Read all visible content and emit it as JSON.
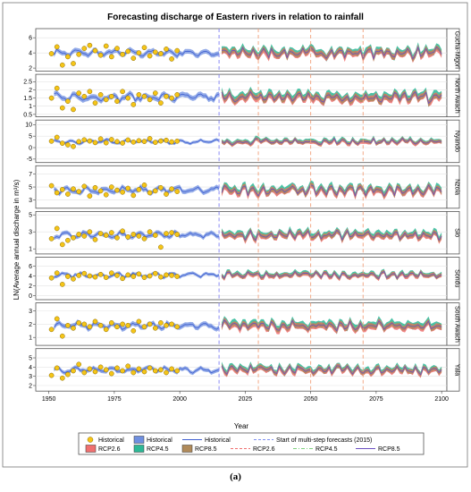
{
  "chart_data": {
    "type": "line",
    "title": "Forecasting discharge of Eastern rivers in relation to rainfall",
    "xlabel": "Year",
    "ylabel": "LN(Average annual discharge in m³/s)",
    "xlim": [
      1945,
      2102
    ],
    "xticks": [
      1950,
      1975,
      2000,
      2025,
      2050,
      2075,
      2100
    ],
    "vlines": {
      "forecast_start": 2015,
      "rcp_markers": [
        2030,
        2050,
        2070
      ]
    },
    "panels": [
      {
        "name": "Gucha-Migori",
        "ylim": [
          1.6,
          7.2
        ],
        "yticks": [
          2,
          4,
          6
        ],
        "level": 4.0,
        "spread": 0.9,
        "hist_obs": [
          3.9,
          4.8,
          2.4,
          3.5,
          2.6,
          3.8,
          4.6,
          5.0,
          4.3,
          3.7,
          4.9,
          3.5,
          4.6,
          3.8,
          4.2,
          3.3,
          4.0,
          4.7,
          3.6,
          4.1,
          3.9,
          4.5,
          3.2,
          4.3
        ]
      },
      {
        "name": "North Awach",
        "ylim": [
          0.35,
          2.95
        ],
        "yticks": [
          0.5,
          1.0,
          1.5,
          2.0,
          2.5
        ],
        "level": 1.55,
        "spread": 0.45,
        "hist_obs": [
          1.5,
          2.1,
          0.9,
          1.3,
          0.8,
          1.8,
          1.6,
          1.9,
          1.2,
          1.7,
          1.4,
          1.6,
          1.3,
          1.9,
          1.5,
          1.1,
          1.7,
          1.6,
          1.4,
          1.8,
          1.2,
          1.6,
          1.5,
          1.7
        ]
      },
      {
        "name": "Nyando",
        "ylim": [
          -6.5,
          12.0
        ],
        "yticks": [
          -5,
          0,
          5,
          10
        ],
        "level": 2.6,
        "spread": 1.8,
        "hist_obs": [
          2.8,
          4.5,
          1.9,
          1.2,
          0.5,
          2.6,
          3.4,
          2.9,
          2.2,
          3.8,
          2.1,
          3.5,
          2.6,
          2.0,
          3.3,
          2.4,
          3.0,
          2.7,
          3.9,
          2.3,
          2.9,
          3.2,
          2.5,
          2.8
        ]
      },
      {
        "name": "Nzoia",
        "ylim": [
          1.7,
          8.3
        ],
        "yticks": [
          3,
          5,
          7
        ],
        "level": 4.5,
        "spread": 1.0,
        "hist_obs": [
          5.2,
          4.1,
          4.6,
          3.9,
          4.7,
          4.3,
          5.1,
          3.6,
          4.9,
          4.4,
          3.8,
          5.0,
          4.5,
          4.2,
          4.8,
          3.7,
          4.6,
          5.3,
          4.1,
          4.4,
          4.9,
          3.9,
          4.7,
          4.3
        ]
      },
      {
        "name": "Sio",
        "ylim": [
          0.4,
          5.4
        ],
        "yticks": [
          1,
          3,
          5
        ],
        "level": 2.6,
        "spread": 0.7,
        "hist_obs": [
          2.2,
          3.4,
          1.5,
          2.0,
          2.3,
          2.7,
          2.5,
          3.0,
          2.1,
          2.8,
          2.6,
          2.9,
          2.3,
          3.1,
          2.4,
          2.7,
          2.5,
          2.2,
          3.0,
          2.6,
          1.2,
          2.8,
          2.9,
          2.7
        ]
      },
      {
        "name": "Sondu",
        "ylim": [
          -0.8,
          7.8
        ],
        "yticks": [
          0,
          2,
          4,
          6
        ],
        "level": 4.2,
        "spread": 0.9,
        "hist_obs": [
          3.6,
          4.6,
          2.3,
          3.9,
          3.4,
          4.1,
          4.5,
          4.0,
          3.8,
          4.3,
          3.7,
          4.6,
          4.1,
          3.5,
          4.2,
          3.9,
          4.4,
          3.7,
          4.0,
          4.5,
          3.8,
          4.2,
          4.1,
          3.9
        ]
      },
      {
        "name": "South Awach",
        "ylim": [
          0.4,
          3.6
        ],
        "yticks": [
          1,
          2,
          3
        ],
        "level": 1.9,
        "spread": 0.5,
        "hist_obs": [
          1.6,
          2.4,
          1.1,
          1.9,
          1.7,
          2.1,
          2.0,
          1.8,
          2.2,
          1.9,
          1.6,
          2.1,
          1.8,
          2.0,
          1.9,
          1.5,
          2.2,
          1.8,
          2.0,
          1.7,
          2.1,
          1.9,
          2.0,
          1.8
        ]
      },
      {
        "name": "Yala",
        "ylim": [
          1.4,
          6.0
        ],
        "yticks": [
          2,
          3,
          4,
          5
        ],
        "level": 3.7,
        "spread": 0.6,
        "hist_obs": [
          3.1,
          3.9,
          2.8,
          3.2,
          3.6,
          4.3,
          3.4,
          3.8,
          3.5,
          4.0,
          3.7,
          3.3,
          3.9,
          3.6,
          4.1,
          3.4,
          3.8,
          3.5,
          3.9,
          3.6,
          3.7,
          3.4,
          3.8,
          3.6
        ]
      }
    ],
    "legend": {
      "row1": [
        {
          "label": "Historical",
          "kind": "marker",
          "color": "#f5c518"
        },
        {
          "label": "Historical",
          "kind": "band",
          "color": "#6f8fe0"
        },
        {
          "label": "Historical",
          "kind": "line",
          "color": "#3f5fd0"
        },
        {
          "label": "Start of multi-step forecasts (2015)",
          "kind": "dash",
          "color": "#7d8ff0"
        }
      ],
      "row2": [
        {
          "label": "RCP2.6",
          "kind": "band",
          "color": "#f07070"
        },
        {
          "label": "RCP4.5",
          "kind": "band",
          "color": "#2db896"
        },
        {
          "label": "RCP8.5",
          "kind": "band",
          "color": "#b08a5a"
        },
        {
          "label": "RCP2.6",
          "kind": "dash",
          "color": "#f07070"
        },
        {
          "label": "RCP4.5",
          "kind": "dashdot",
          "color": "#7fd17f"
        },
        {
          "label": "RCP8.5",
          "kind": "line",
          "color": "#6a4fc0"
        }
      ]
    },
    "colors": {
      "hist_band": "#6f8fe0",
      "hist_line": "#3f5fd0",
      "marker": "#f5c518",
      "rcp26": "#f07070",
      "rcp45": "#2db896",
      "rcp85": "#b08a5a",
      "rcp85_line": "#6a4fc0",
      "forecast_vline": "#8b8bf5",
      "rcp_vline": "#f2a07a"
    }
  },
  "caption": "(a)"
}
